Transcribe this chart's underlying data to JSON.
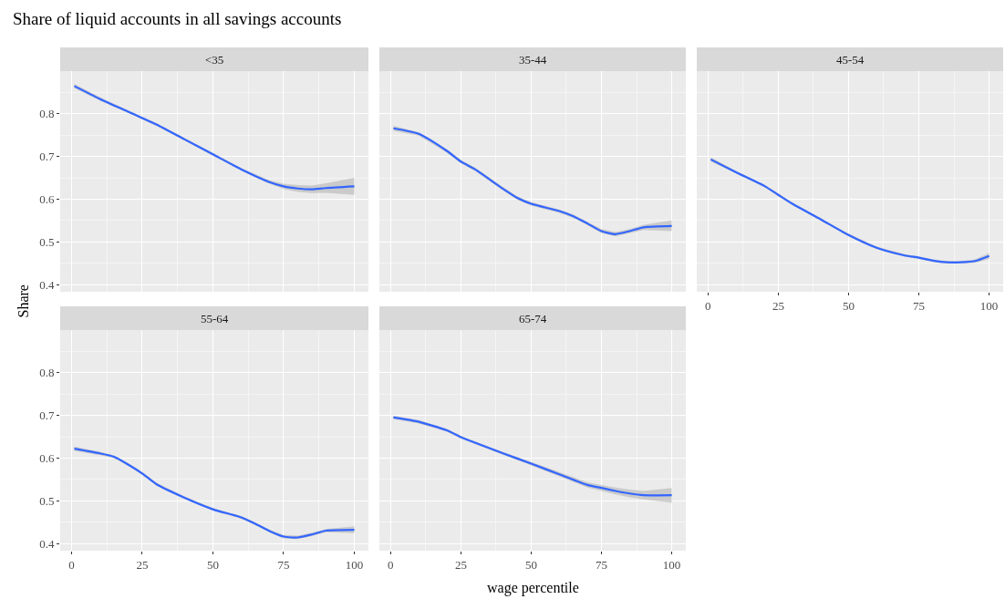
{
  "chart_data": [
    {
      "type": "line",
      "title": "<35",
      "ylabel": "Share",
      "annotations": [
        "Share of liquid accounts in all savings accounts"
      ],
      "x": [
        1,
        10,
        20,
        25,
        30,
        40,
        50,
        60,
        70,
        75,
        80,
        85,
        90,
        100
      ],
      "series": [
        {
          "color": "#3366ff",
          "values": [
            0.865,
            0.835,
            0.805,
            0.79,
            0.775,
            0.74,
            0.705,
            0.67,
            0.64,
            0.63,
            0.625,
            0.623,
            0.626,
            0.63
          ],
          "lower": [
            0.86,
            0.831,
            0.802,
            0.787,
            0.772,
            0.737,
            0.702,
            0.667,
            0.636,
            0.624,
            0.617,
            0.614,
            0.615,
            0.61
          ],
          "upper": [
            0.87,
            0.839,
            0.808,
            0.793,
            0.778,
            0.743,
            0.708,
            0.673,
            0.644,
            0.636,
            0.633,
            0.632,
            0.637,
            0.65
          ]
        }
      ],
      "xlim": [
        -4,
        105
      ],
      "ylim": [
        0.383,
        0.9
      ],
      "xticks": [
        0,
        25,
        50,
        75,
        100
      ],
      "yticks": [
        0.4,
        0.5,
        0.6,
        0.7,
        0.8
      ],
      "grid": true,
      "tick_labels": "y"
    },
    {
      "type": "line",
      "title": "35-44",
      "x": [
        1,
        10,
        20,
        25,
        30,
        40,
        45,
        50,
        60,
        65,
        70,
        75,
        80,
        85,
        90,
        100
      ],
      "series": [
        {
          "color": "#3366ff",
          "values": [
            0.766,
            0.753,
            0.713,
            0.688,
            0.67,
            0.624,
            0.603,
            0.589,
            0.572,
            0.56,
            0.543,
            0.525,
            0.518,
            0.525,
            0.534,
            0.537
          ],
          "lower": [
            0.76,
            0.749,
            0.709,
            0.684,
            0.666,
            0.62,
            0.599,
            0.585,
            0.568,
            0.556,
            0.539,
            0.52,
            0.513,
            0.52,
            0.528,
            0.525
          ],
          "upper": [
            0.772,
            0.757,
            0.717,
            0.692,
            0.674,
            0.628,
            0.607,
            0.593,
            0.576,
            0.564,
            0.547,
            0.53,
            0.523,
            0.53,
            0.54,
            0.55
          ]
        }
      ],
      "xlim": [
        -4,
        105
      ],
      "ylim": [
        0.383,
        0.9
      ],
      "xticks": [
        0,
        25,
        50,
        75,
        100
      ],
      "yticks": [
        0.4,
        0.5,
        0.6,
        0.7,
        0.8
      ],
      "grid": true,
      "tick_labels": false
    },
    {
      "type": "line",
      "title": "45-54",
      "x": [
        1,
        10,
        20,
        25,
        30,
        40,
        50,
        60,
        70,
        75,
        80,
        85,
        90,
        95,
        100
      ],
      "series": [
        {
          "color": "#3366ff",
          "values": [
            0.693,
            0.663,
            0.631,
            0.61,
            0.589,
            0.553,
            0.516,
            0.486,
            0.468,
            0.463,
            0.456,
            0.452,
            0.452,
            0.455,
            0.467
          ],
          "lower": [
            0.688,
            0.66,
            0.628,
            0.607,
            0.586,
            0.55,
            0.513,
            0.483,
            0.465,
            0.46,
            0.453,
            0.449,
            0.449,
            0.451,
            0.46
          ],
          "upper": [
            0.698,
            0.666,
            0.634,
            0.613,
            0.592,
            0.556,
            0.519,
            0.489,
            0.471,
            0.466,
            0.459,
            0.455,
            0.455,
            0.459,
            0.474
          ]
        }
      ],
      "xlim": [
        -4,
        105
      ],
      "ylim": [
        0.383,
        0.9
      ],
      "xticks": [
        0,
        25,
        50,
        75,
        100
      ],
      "yticks": [
        0.4,
        0.5,
        0.6,
        0.7,
        0.8
      ],
      "grid": true,
      "tick_labels": "x"
    },
    {
      "type": "line",
      "title": "55-64",
      "x": [
        1,
        10,
        15,
        20,
        25,
        30,
        40,
        50,
        60,
        65,
        70,
        75,
        80,
        85,
        90,
        100
      ],
      "series": [
        {
          "color": "#3366ff",
          "values": [
            0.622,
            0.611,
            0.603,
            0.585,
            0.564,
            0.539,
            0.507,
            0.48,
            0.461,
            0.446,
            0.429,
            0.416,
            0.414,
            0.421,
            0.43,
            0.432
          ],
          "lower": [
            0.617,
            0.607,
            0.6,
            0.582,
            0.561,
            0.536,
            0.504,
            0.477,
            0.458,
            0.443,
            0.426,
            0.412,
            0.41,
            0.417,
            0.426,
            0.424
          ],
          "upper": [
            0.627,
            0.615,
            0.606,
            0.588,
            0.567,
            0.542,
            0.51,
            0.483,
            0.464,
            0.449,
            0.432,
            0.42,
            0.418,
            0.425,
            0.434,
            0.44
          ]
        }
      ],
      "xlim": [
        -4,
        105
      ],
      "ylim": [
        0.383,
        0.9
      ],
      "xticks": [
        0,
        25,
        50,
        75,
        100
      ],
      "yticks": [
        0.4,
        0.5,
        0.6,
        0.7,
        0.8
      ],
      "grid": true
    },
    {
      "type": "line",
      "title": "65-74",
      "xlabel": "wage percentile",
      "x": [
        1,
        10,
        20,
        25,
        30,
        40,
        50,
        60,
        70,
        75,
        80,
        85,
        90,
        100
      ],
      "series": [
        {
          "color": "#3366ff",
          "values": [
            0.695,
            0.685,
            0.665,
            0.649,
            0.636,
            0.611,
            0.587,
            0.562,
            0.537,
            0.53,
            0.523,
            0.517,
            0.513,
            0.513
          ],
          "lower": [
            0.691,
            0.681,
            0.662,
            0.646,
            0.633,
            0.608,
            0.583,
            0.557,
            0.531,
            0.523,
            0.515,
            0.508,
            0.503,
            0.495
          ],
          "upper": [
            0.699,
            0.689,
            0.668,
            0.652,
            0.639,
            0.614,
            0.591,
            0.567,
            0.543,
            0.537,
            0.531,
            0.526,
            0.523,
            0.53
          ]
        }
      ],
      "xlim": [
        -4,
        105
      ],
      "ylim": [
        0.383,
        0.9
      ],
      "xticks": [
        0,
        25,
        50,
        75,
        100
      ],
      "yticks": [
        0.4,
        0.5,
        0.6,
        0.7,
        0.8
      ],
      "grid": true,
      "tick_labels": "x"
    }
  ]
}
